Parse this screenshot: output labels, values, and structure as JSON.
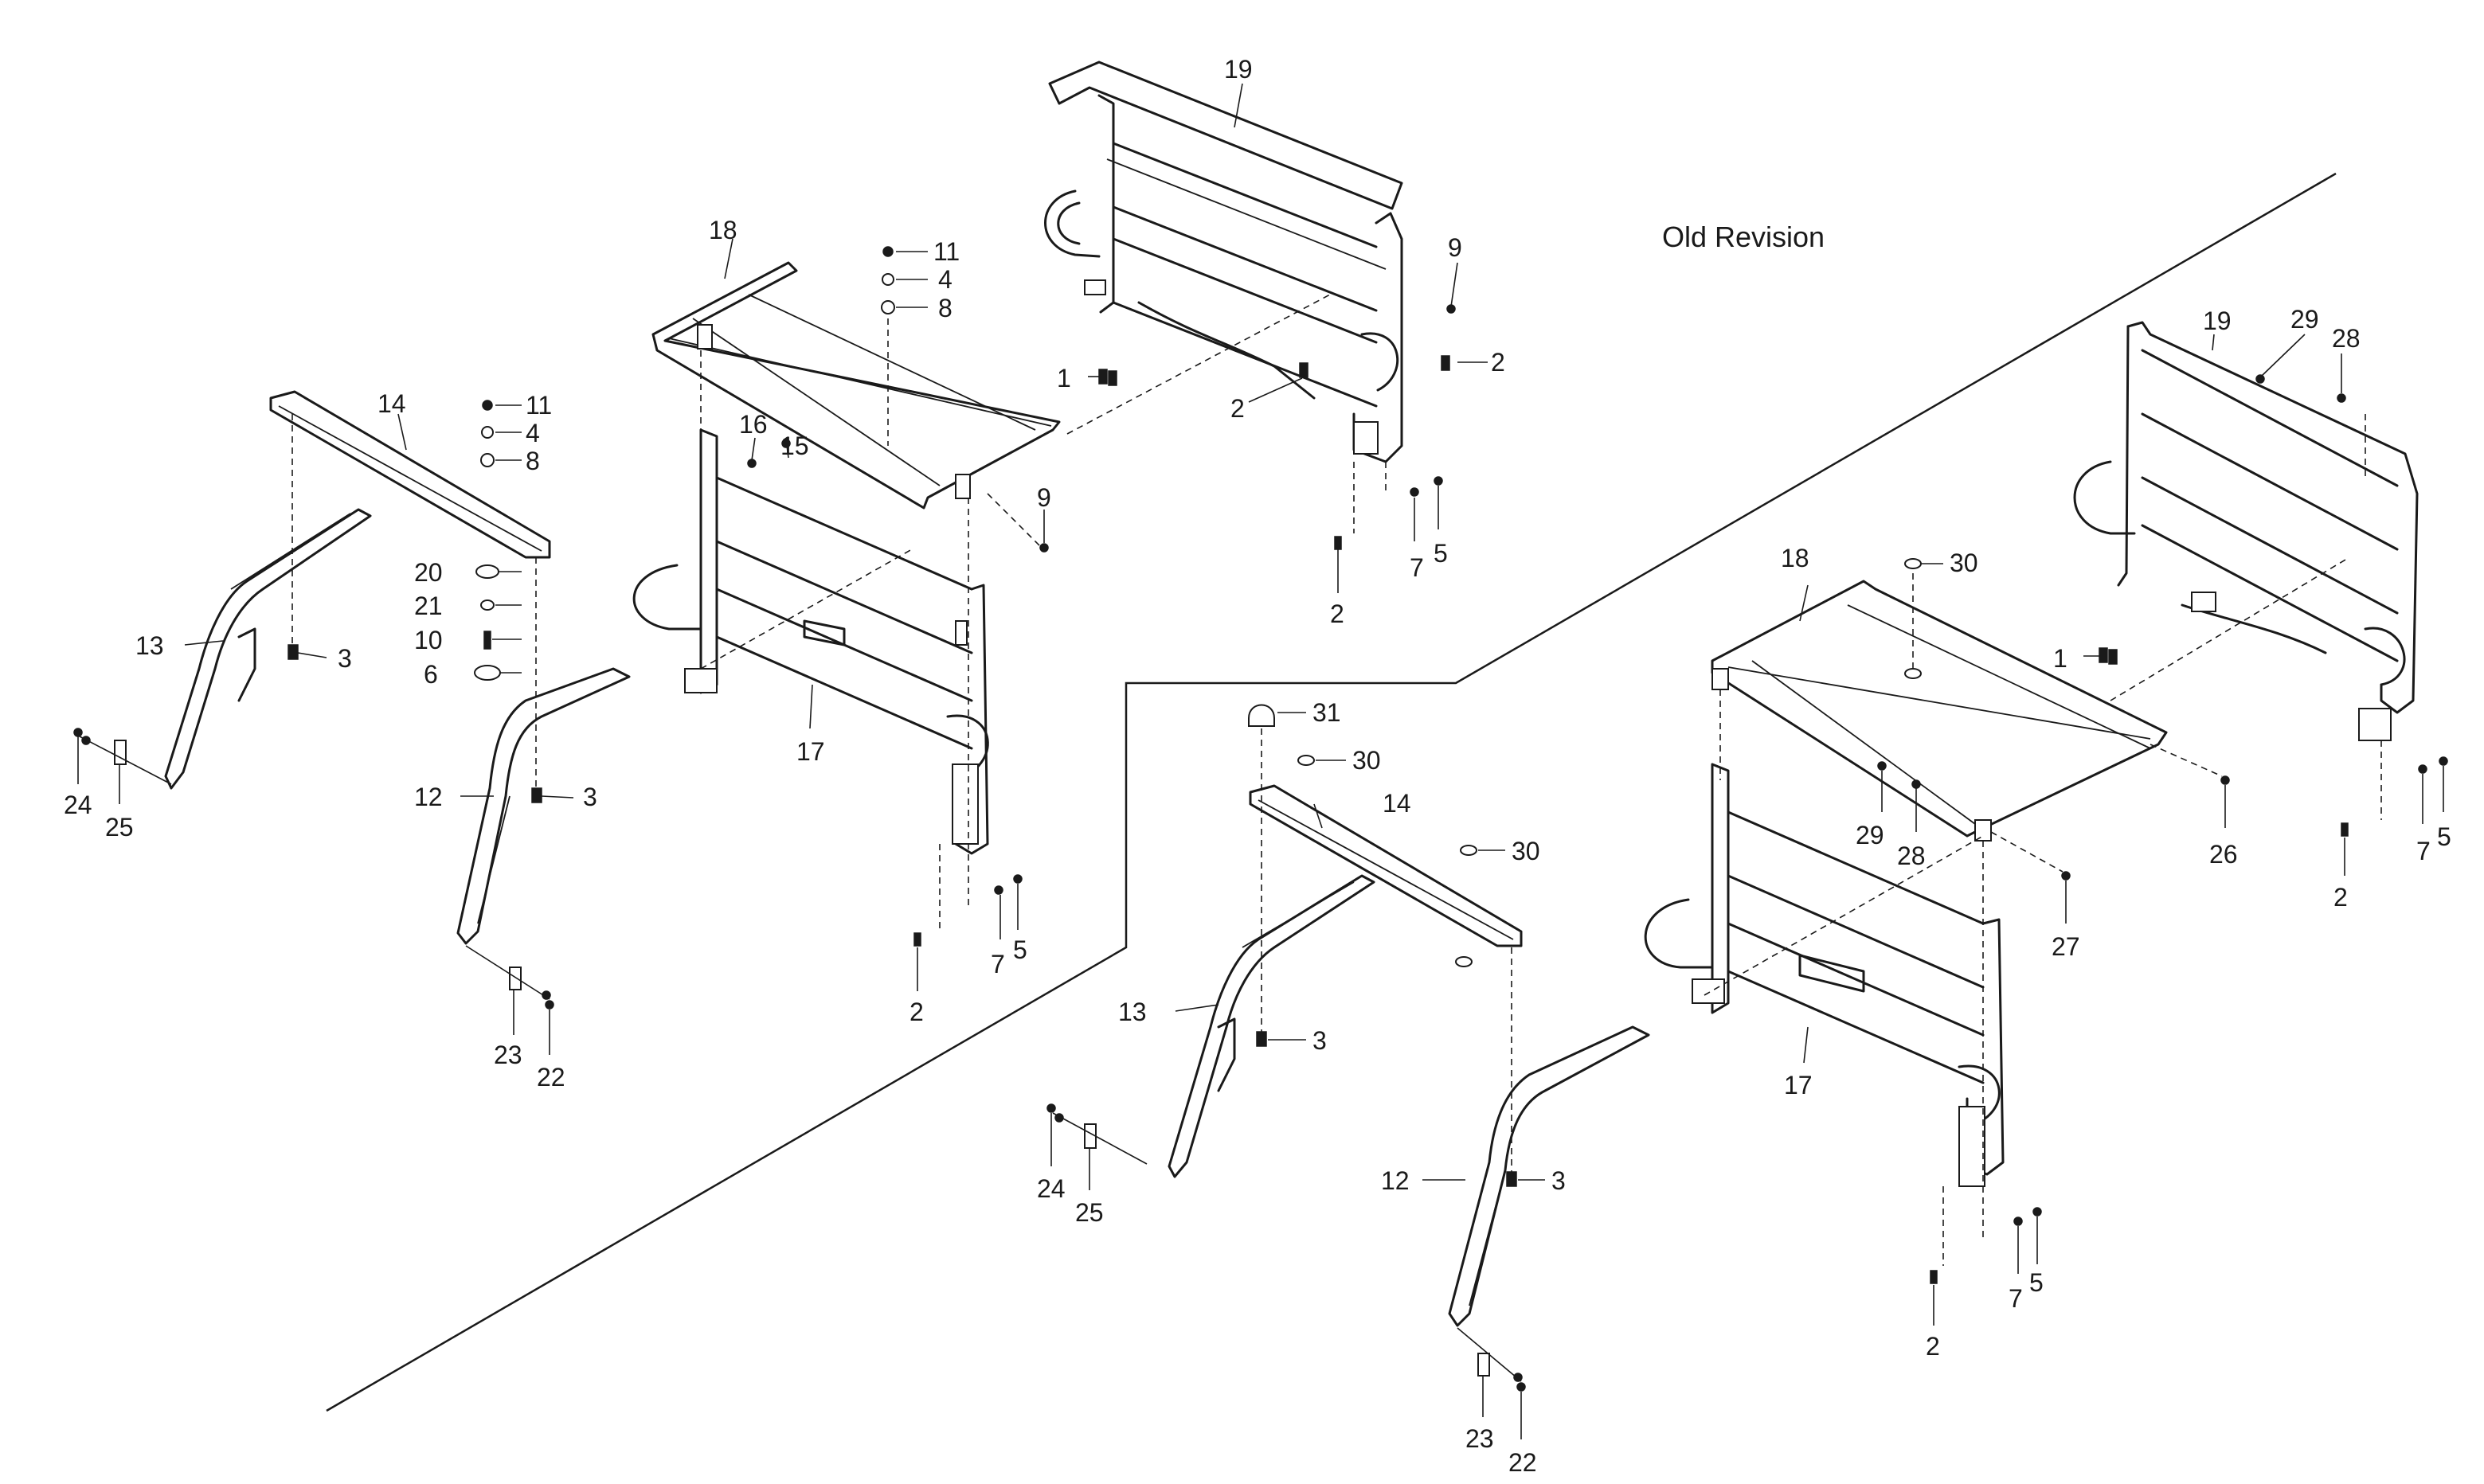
{
  "diagram": {
    "revision_label": "Old Revision",
    "current_assembly": {
      "callouts": [
        "19",
        "9",
        "2",
        "2",
        "2",
        "7",
        "5",
        "1",
        "18",
        "11",
        "4",
        "8",
        "16",
        "15",
        "9",
        "14",
        "11",
        "4",
        "8",
        "20",
        "21",
        "10",
        "6",
        "13",
        "3",
        "3",
        "12",
        "17",
        "24",
        "25",
        "23",
        "22",
        "7",
        "5",
        "2"
      ]
    },
    "old_revision_assembly": {
      "callouts": [
        "19",
        "29",
        "28",
        "1",
        "2",
        "7",
        "5",
        "18",
        "30",
        "26",
        "29",
        "28",
        "27",
        "31",
        "30",
        "14",
        "30",
        "13",
        "3",
        "12",
        "3",
        "17",
        "24",
        "25",
        "23",
        "22",
        "2",
        "7",
        "5"
      ]
    }
  }
}
